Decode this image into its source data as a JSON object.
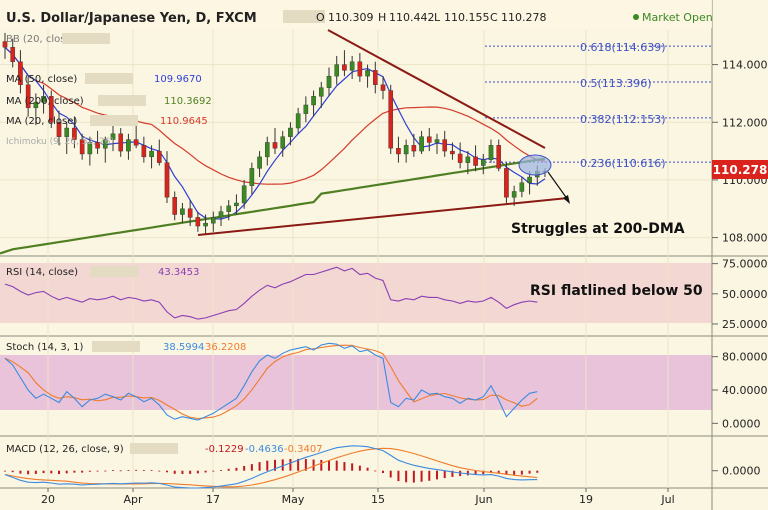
{
  "header": {
    "symbol": "U.S. Dollar/Japanese Yen, D, FXCM",
    "o_label": "O",
    "o": "110.309",
    "h_label": "H",
    "h": "110.442",
    "l_label": "L",
    "l": "110.155",
    "c_label": "C",
    "c": "110.278",
    "status": "Market Open"
  },
  "legend": {
    "bb": "BB (20, close, 2)",
    "ma1": {
      "label": "MA (50, close)",
      "value": "109.9670"
    },
    "ma2": {
      "label": "MA (200, close)",
      "value": "110.3692"
    },
    "ma3": {
      "label": "MA (20, close)",
      "value": "110.9645"
    },
    "ichimoku": "Ichimoku (9, 26, 52, 26)"
  },
  "fib": [
    {
      "label": "0.618(114.639)",
      "value": 114.639
    },
    {
      "label": "0.5(113.396)",
      "value": 113.396
    },
    {
      "label": "0.382(112.153)",
      "value": 112.153
    },
    {
      "label": "0.236(110.616)",
      "value": 110.616
    }
  ],
  "annotations": {
    "main": "Struggles at 200-DMA",
    "rsi": "RSI flatlined below 50"
  },
  "price_label": "110.278",
  "rsi": {
    "label": "RSI (14, close)",
    "value": "43.3453"
  },
  "stoch": {
    "label": "Stoch (14, 3, 1)",
    "k": "38.5994",
    "d": "36.2208"
  },
  "macd": {
    "label": "MACD (12, 26, close, 9)",
    "v1": "-0.1229",
    "v2": "-0.4636",
    "v3": "-0.3407"
  },
  "colors": {
    "background": "#fbf6e2",
    "up": "#3a8a23",
    "down": "#d9231c",
    "ma50": "#2e3fd6",
    "ma200": "#4f7f22",
    "ma20": "#d63a2a",
    "trend": "#8b1a14",
    "rsi": "#8a3fb4",
    "stoch_k": "#3c8be0",
    "stoch_d": "#f07c2c",
    "macd": "#3c8be0",
    "signal": "#f07c2c",
    "hist": "#c0191f",
    "price_tag": "#d9231c"
  },
  "chart_data": {
    "type": "candlestick",
    "x_ticks": [
      "20",
      "Apr",
      "17",
      "May",
      "15",
      "Jun",
      "19",
      "Jul"
    ],
    "y_ticks": [
      "114.000",
      "112.000",
      "110.000",
      "108.000"
    ],
    "ylim": [
      107.5,
      115.2
    ],
    "rsi_ticks": [
      "75.0000",
      "50.0000",
      "25.0000"
    ],
    "rsi_ylim": [
      20,
      78
    ],
    "stoch_ticks": [
      "80.0000",
      "40.0000",
      "0.0000"
    ],
    "stoch_ylim": [
      -8,
      100
    ],
    "macd_ticks": [
      "0.0000"
    ],
    "macd_ylim": [
      -0.9,
      1.6
    ],
    "candles": [
      [
        114.8,
        115.1,
        114.2,
        114.6
      ],
      [
        114.6,
        114.9,
        113.9,
        114.1
      ],
      [
        114.1,
        114.5,
        113.0,
        113.3
      ],
      [
        113.3,
        113.6,
        112.2,
        112.5
      ],
      [
        112.5,
        113.0,
        111.9,
        112.7
      ],
      [
        112.7,
        113.3,
        112.3,
        112.9
      ],
      [
        112.9,
        113.1,
        111.8,
        112.0
      ],
      [
        112.0,
        112.4,
        111.2,
        111.5
      ],
      [
        111.5,
        112.0,
        110.9,
        111.8
      ],
      [
        111.8,
        112.2,
        111.1,
        111.4
      ],
      [
        111.4,
        111.6,
        110.7,
        110.9
      ],
      [
        110.9,
        111.5,
        110.5,
        111.3
      ],
      [
        111.3,
        111.7,
        110.9,
        111.1
      ],
      [
        111.1,
        111.5,
        110.6,
        111.4
      ],
      [
        111.4,
        111.9,
        111.0,
        111.6
      ],
      [
        111.6,
        111.8,
        110.8,
        111.0
      ],
      [
        111.0,
        111.6,
        110.7,
        111.4
      ],
      [
        111.4,
        111.9,
        111.1,
        111.2
      ],
      [
        111.2,
        111.5,
        110.6,
        110.8
      ],
      [
        110.8,
        111.2,
        110.4,
        111.0
      ],
      [
        111.0,
        111.4,
        110.5,
        110.6
      ],
      [
        110.6,
        111.0,
        109.2,
        109.4
      ],
      [
        109.4,
        109.6,
        108.6,
        108.8
      ],
      [
        108.8,
        109.2,
        108.5,
        109.0
      ],
      [
        109.0,
        109.3,
        108.4,
        108.7
      ],
      [
        108.7,
        108.9,
        108.2,
        108.4
      ],
      [
        108.4,
        108.8,
        108.1,
        108.5
      ],
      [
        108.5,
        108.9,
        108.2,
        108.7
      ],
      [
        108.7,
        109.1,
        108.4,
        108.9
      ],
      [
        108.9,
        109.3,
        108.6,
        109.1
      ],
      [
        109.1,
        109.5,
        108.8,
        109.2
      ],
      [
        109.2,
        110.0,
        109.0,
        109.8
      ],
      [
        109.8,
        110.6,
        109.5,
        110.4
      ],
      [
        110.4,
        111.0,
        110.1,
        110.8
      ],
      [
        110.8,
        111.5,
        110.5,
        111.3
      ],
      [
        111.3,
        111.8,
        110.9,
        111.1
      ],
      [
        111.1,
        111.7,
        110.8,
        111.5
      ],
      [
        111.5,
        112.0,
        111.2,
        111.8
      ],
      [
        111.8,
        112.5,
        111.6,
        112.3
      ],
      [
        112.3,
        112.9,
        112.0,
        112.6
      ],
      [
        112.6,
        113.1,
        112.2,
        112.9
      ],
      [
        112.9,
        113.4,
        112.5,
        113.2
      ],
      [
        113.2,
        113.9,
        112.9,
        113.6
      ],
      [
        113.6,
        114.3,
        113.3,
        114.0
      ],
      [
        114.0,
        114.5,
        113.6,
        113.8
      ],
      [
        113.8,
        114.3,
        113.5,
        114.1
      ],
      [
        114.1,
        114.4,
        113.4,
        113.6
      ],
      [
        113.6,
        114.0,
        113.2,
        113.8
      ],
      [
        113.8,
        114.1,
        113.0,
        113.3
      ],
      [
        113.3,
        113.6,
        112.8,
        113.1
      ],
      [
        113.1,
        113.3,
        110.9,
        111.1
      ],
      [
        111.1,
        111.5,
        110.6,
        110.9
      ],
      [
        110.9,
        111.4,
        110.6,
        111.2
      ],
      [
        111.2,
        111.6,
        110.8,
        111.0
      ],
      [
        111.0,
        111.7,
        110.9,
        111.5
      ],
      [
        111.5,
        111.8,
        111.0,
        111.3
      ],
      [
        111.3,
        111.6,
        110.9,
        111.4
      ],
      [
        111.4,
        111.7,
        110.8,
        111.0
      ],
      [
        111.0,
        111.3,
        110.7,
        110.9
      ],
      [
        110.9,
        111.3,
        110.4,
        110.6
      ],
      [
        110.6,
        111.0,
        110.2,
        110.8
      ],
      [
        110.8,
        111.2,
        110.3,
        110.5
      ],
      [
        110.5,
        110.9,
        110.2,
        110.7
      ],
      [
        110.7,
        111.4,
        110.6,
        111.2
      ],
      [
        111.2,
        111.4,
        110.3,
        110.4
      ],
      [
        110.4,
        110.6,
        109.2,
        109.4
      ],
      [
        109.4,
        109.8,
        109.1,
        109.6
      ],
      [
        109.6,
        110.1,
        109.4,
        109.9
      ],
      [
        109.9,
        110.3,
        109.5,
        110.1
      ],
      [
        110.1,
        110.5,
        109.8,
        110.3
      ],
      [
        110.3,
        110.4,
        110.1,
        110.3
      ]
    ]
  }
}
